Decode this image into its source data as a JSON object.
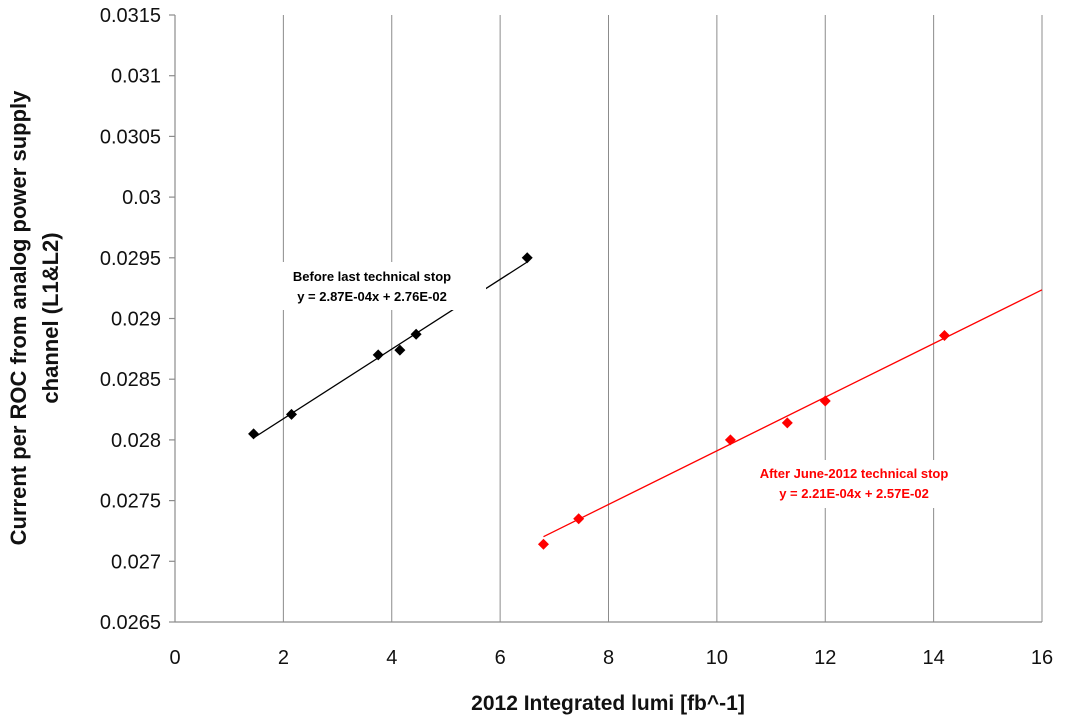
{
  "chart_data": {
    "type": "scatter",
    "title": "",
    "xlabel": "2012 Integrated lumi [fb^-1]",
    "ylabel_lines": [
      "Current per ROC from analog power supply",
      "channel (L1&L2)"
    ],
    "xlim": [
      0,
      16
    ],
    "ylim": [
      0.0265,
      0.0315
    ],
    "x_ticks": [
      "0",
      "2",
      "4",
      "6",
      "8",
      "10",
      "12",
      "14",
      "16"
    ],
    "y_ticks": [
      "0.0265",
      "0.027",
      "0.0275",
      "0.028",
      "0.0285",
      "0.029",
      "0.0295",
      "0.03",
      "0.0305",
      "0.031",
      "0.0315"
    ],
    "grid": {
      "vertical": true,
      "horizontal": false
    },
    "legend": "none",
    "series": [
      {
        "color": "#000000",
        "x": [
          1.45,
          2.15,
          3.75,
          4.15,
          4.45,
          6.5
        ],
        "y": [
          0.02805,
          0.02821,
          0.0287,
          0.02874,
          0.02887,
          0.0295
        ],
        "trendline": {
          "slope": 0.000287,
          "intercept": 0.0276,
          "x_from": 1.45,
          "x_to": 6.5
        },
        "annotation": [
          "Before last technical stop",
          "y = 2.87E-04x + 2.76E-02"
        ]
      },
      {
        "color": "#ff0000",
        "x": [
          6.8,
          7.45,
          10.25,
          11.3,
          12.0,
          14.2
        ],
        "y": [
          0.02714,
          0.02735,
          0.028,
          0.02814,
          0.02832,
          0.02886
        ],
        "trendline": {
          "slope": 0.000221,
          "intercept": 0.0257,
          "x_from": 6.8,
          "x_to": 16
        },
        "annotation": [
          "After June-2012 technical stop",
          "y = 2.21E-04x + 2.57E-02"
        ]
      }
    ]
  }
}
